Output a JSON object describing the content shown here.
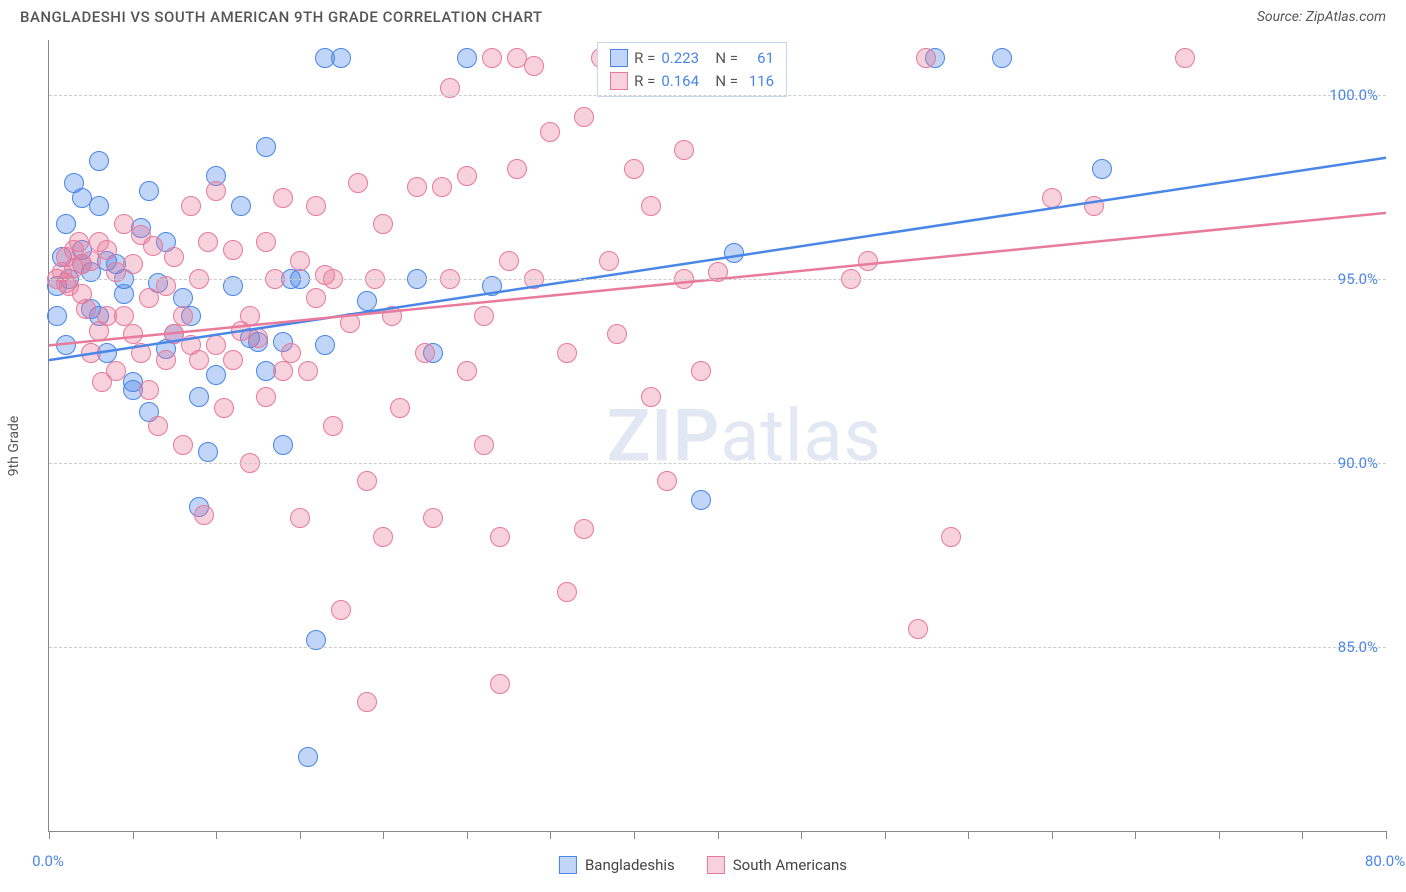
{
  "header": {
    "title": "BANGLADESHI VS SOUTH AMERICAN 9TH GRADE CORRELATION CHART",
    "source_prefix": "Source: ",
    "source_name": "ZipAtlas.com"
  },
  "chart": {
    "type": "scatter",
    "background_color": "#ffffff",
    "grid_color": "#cccccc",
    "axis_color": "#888888",
    "text_color": "#555555",
    "value_color": "#4a86e8",
    "yaxis_label": "9th Grade",
    "yaxis_label_fontsize": 14,
    "tick_fontsize": 15,
    "xlim": [
      0,
      80
    ],
    "ylim": [
      80,
      101.5
    ],
    "yticks": [
      {
        "v": 100,
        "label": "100.0%"
      },
      {
        "v": 95,
        "label": "95.0%"
      },
      {
        "v": 90,
        "label": "90.0%"
      },
      {
        "v": 85,
        "label": "85.0%"
      }
    ],
    "xtick_positions": [
      0,
      5,
      10,
      15,
      20,
      25,
      30,
      35,
      40,
      45,
      50,
      55,
      60,
      65,
      70,
      75,
      80
    ],
    "xtick_labels": [
      {
        "v": 0,
        "label": "0.0%"
      },
      {
        "v": 80,
        "label": "80.0%"
      }
    ],
    "marker_radius": 10,
    "marker_stroke_width": 1.5,
    "marker_fill_opacity": 0.35,
    "trend_line_width": 2.5,
    "watermark_text_bold": "ZIP",
    "watermark_text_rest": "atlas",
    "series": [
      {
        "id": "bangladeshis",
        "label": "Bangladeshis",
        "color_stroke": "#4a86e8",
        "color_fill": "rgba(74,134,232,0.35)",
        "R": "0.223",
        "N": "61",
        "trend": {
          "x1": 0,
          "y1": 92.8,
          "x2": 80,
          "y2": 98.3
        },
        "points": [
          [
            0.5,
            94.0
          ],
          [
            0.5,
            94.8
          ],
          [
            0.8,
            95.6
          ],
          [
            1.0,
            93.2
          ],
          [
            1.0,
            96.5
          ],
          [
            1.2,
            95.0
          ],
          [
            1.5,
            97.6
          ],
          [
            2.0,
            97.2
          ],
          [
            2.0,
            95.4
          ],
          [
            2.0,
            95.8
          ],
          [
            2.5,
            94.2
          ],
          [
            2.5,
            95.2
          ],
          [
            3.0,
            98.2
          ],
          [
            3.0,
            97.0
          ],
          [
            3.0,
            94.0
          ],
          [
            3.5,
            93.0
          ],
          [
            3.5,
            95.5
          ],
          [
            4.0,
            95.4
          ],
          [
            4.5,
            94.6
          ],
          [
            4.5,
            95.0
          ],
          [
            5.0,
            92.0
          ],
          [
            5.0,
            92.2
          ],
          [
            5.5,
            96.4
          ],
          [
            6.0,
            91.4
          ],
          [
            6.0,
            97.4
          ],
          [
            6.5,
            94.9
          ],
          [
            7.0,
            93.1
          ],
          [
            7.0,
            96.0
          ],
          [
            7.5,
            93.5
          ],
          [
            8.0,
            94.5
          ],
          [
            8.5,
            94.0
          ],
          [
            9.0,
            91.8
          ],
          [
            9.0,
            88.8
          ],
          [
            9.5,
            90.3
          ],
          [
            10.0,
            97.8
          ],
          [
            10.0,
            92.4
          ],
          [
            11.0,
            94.8
          ],
          [
            11.5,
            97.0
          ],
          [
            12.0,
            93.4
          ],
          [
            12.5,
            93.3
          ],
          [
            13.0,
            98.6
          ],
          [
            13.0,
            92.5
          ],
          [
            14.0,
            93.3
          ],
          [
            14.0,
            90.5
          ],
          [
            14.5,
            95.0
          ],
          [
            15.0,
            95.0
          ],
          [
            15.5,
            82.0
          ],
          [
            16.0,
            85.2
          ],
          [
            16.5,
            93.2
          ],
          [
            16.5,
            101.0
          ],
          [
            17.5,
            101.0
          ],
          [
            19.0,
            94.4
          ],
          [
            22.0,
            95.0
          ],
          [
            23.0,
            93.0
          ],
          [
            25.0,
            101.0
          ],
          [
            26.5,
            94.8
          ],
          [
            39.0,
            89.0
          ],
          [
            41.0,
            95.7
          ],
          [
            53.0,
            101.0
          ],
          [
            57.0,
            101.0
          ],
          [
            63.0,
            98.0
          ]
        ]
      },
      {
        "id": "south_americans",
        "label": "South Americans",
        "color_stroke": "#e87a9b",
        "color_fill": "rgba(232,122,155,0.35)",
        "R": "0.164",
        "N": "116",
        "trend": {
          "x1": 0,
          "y1": 93.2,
          "x2": 80,
          "y2": 96.8
        },
        "points": [
          [
            0.5,
            95.0
          ],
          [
            0.8,
            95.2
          ],
          [
            1.0,
            95.6
          ],
          [
            1.0,
            94.9
          ],
          [
            1.2,
            94.8
          ],
          [
            1.5,
            95.3
          ],
          [
            1.5,
            95.8
          ],
          [
            1.8,
            96.0
          ],
          [
            2.0,
            95.4
          ],
          [
            2.0,
            94.6
          ],
          [
            2.2,
            94.2
          ],
          [
            2.5,
            95.5
          ],
          [
            2.5,
            93.0
          ],
          [
            3.0,
            93.6
          ],
          [
            3.0,
            96.0
          ],
          [
            3.2,
            92.2
          ],
          [
            3.5,
            94.0
          ],
          [
            3.5,
            95.8
          ],
          [
            4.0,
            92.5
          ],
          [
            4.0,
            95.2
          ],
          [
            4.5,
            94.0
          ],
          [
            4.5,
            96.5
          ],
          [
            5.0,
            93.5
          ],
          [
            5.0,
            95.4
          ],
          [
            5.5,
            93.0
          ],
          [
            5.5,
            96.2
          ],
          [
            6.0,
            94.5
          ],
          [
            6.0,
            92.0
          ],
          [
            6.2,
            95.9
          ],
          [
            6.5,
            91.0
          ],
          [
            7.0,
            94.8
          ],
          [
            7.0,
            92.8
          ],
          [
            7.5,
            93.5
          ],
          [
            7.5,
            95.6
          ],
          [
            8.0,
            94.0
          ],
          [
            8.0,
            90.5
          ],
          [
            8.5,
            93.2
          ],
          [
            8.5,
            97.0
          ],
          [
            9.0,
            92.8
          ],
          [
            9.0,
            95.0
          ],
          [
            9.5,
            96.0
          ],
          [
            10.0,
            93.2
          ],
          [
            10.0,
            97.4
          ],
          [
            10.5,
            91.5
          ],
          [
            11.0,
            92.8
          ],
          [
            11.0,
            95.8
          ],
          [
            11.5,
            93.6
          ],
          [
            12.0,
            94.0
          ],
          [
            12.0,
            90.0
          ],
          [
            12.5,
            93.4
          ],
          [
            13.0,
            96.0
          ],
          [
            13.0,
            91.8
          ],
          [
            13.5,
            95.0
          ],
          [
            14.0,
            97.2
          ],
          [
            14.0,
            92.5
          ],
          [
            14.5,
            93.0
          ],
          [
            15.0,
            95.5
          ],
          [
            15.0,
            88.5
          ],
          [
            15.5,
            92.5
          ],
          [
            16.0,
            94.5
          ],
          [
            16.0,
            97.0
          ],
          [
            17.0,
            91.0
          ],
          [
            17.0,
            95.0
          ],
          [
            17.5,
            86.0
          ],
          [
            18.0,
            93.8
          ],
          [
            18.5,
            97.6
          ],
          [
            19.0,
            89.5
          ],
          [
            19.0,
            83.5
          ],
          [
            19.5,
            95.0
          ],
          [
            20.0,
            88.0
          ],
          [
            20.0,
            96.5
          ],
          [
            20.5,
            94.0
          ],
          [
            21.0,
            91.5
          ],
          [
            22.0,
            97.5
          ],
          [
            22.5,
            93.0
          ],
          [
            23.0,
            88.5
          ],
          [
            24.0,
            95.0
          ],
          [
            24.0,
            100.2
          ],
          [
            25.0,
            92.5
          ],
          [
            25.0,
            97.8
          ],
          [
            26.0,
            94.0
          ],
          [
            26.0,
            90.5
          ],
          [
            27.0,
            88.0
          ],
          [
            27.0,
            84.0
          ],
          [
            27.5,
            95.5
          ],
          [
            28.0,
            98.0
          ],
          [
            28.0,
            101.0
          ],
          [
            29.0,
            95.0
          ],
          [
            29.0,
            100.8
          ],
          [
            30.0,
            99.0
          ],
          [
            31.0,
            93.0
          ],
          [
            31.0,
            86.5
          ],
          [
            32.0,
            99.4
          ],
          [
            32.0,
            88.2
          ],
          [
            33.0,
            101.0
          ],
          [
            33.5,
            95.5
          ],
          [
            34.0,
            93.5
          ],
          [
            35.0,
            98.0
          ],
          [
            36.0,
            91.8
          ],
          [
            36.0,
            97.0
          ],
          [
            37.0,
            89.5
          ],
          [
            38.0,
            95.0
          ],
          [
            38.0,
            98.5
          ],
          [
            39.0,
            92.5
          ],
          [
            40.0,
            95.2
          ],
          [
            48.0,
            95.0
          ],
          [
            49.0,
            95.5
          ],
          [
            52.0,
            85.5
          ],
          [
            52.5,
            101.0
          ],
          [
            54.0,
            88.0
          ],
          [
            60.0,
            97.2
          ],
          [
            62.5,
            97.0
          ],
          [
            68.0,
            101.0
          ],
          [
            23.5,
            97.5
          ],
          [
            26.5,
            101.0
          ],
          [
            16.5,
            95.1
          ],
          [
            9.3,
            88.6
          ]
        ]
      }
    ]
  },
  "legend_top": {
    "r_label": "R =",
    "n_label": "N ="
  },
  "bottom_legend": {}
}
